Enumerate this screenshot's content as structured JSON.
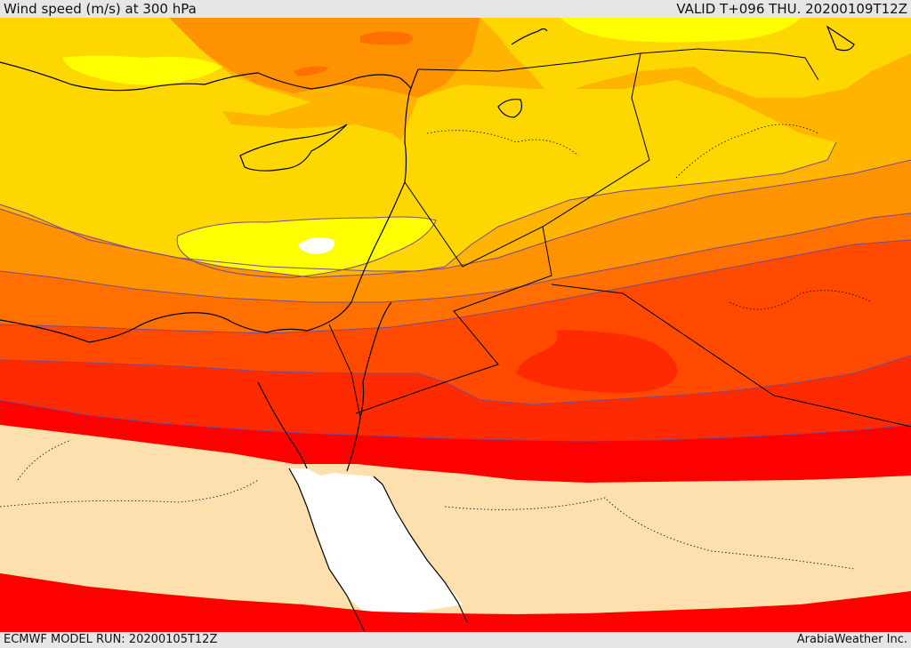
{
  "header": {
    "title": "Wind speed (m/s) at 300 hPa",
    "valid": "VALID T+096 THU. 20200109T12Z"
  },
  "footer": {
    "model_run": "ECMWF MODEL RUN: 20200105T12Z",
    "credit": "ArabiaWeather Inc."
  },
  "palette": {
    "white": "#ffffff",
    "wheat": "#fde0ad",
    "red": "#ff0000",
    "red_orange": "#ff2a00",
    "orange_red": "#ff4a00",
    "dark_orange": "#ff7000",
    "orange": "#ff9200",
    "light_orange": "#ffb400",
    "gold": "#ffd700",
    "yellow": "#ffff00",
    "contour": "#7b4a8a",
    "border": "#000000"
  }
}
